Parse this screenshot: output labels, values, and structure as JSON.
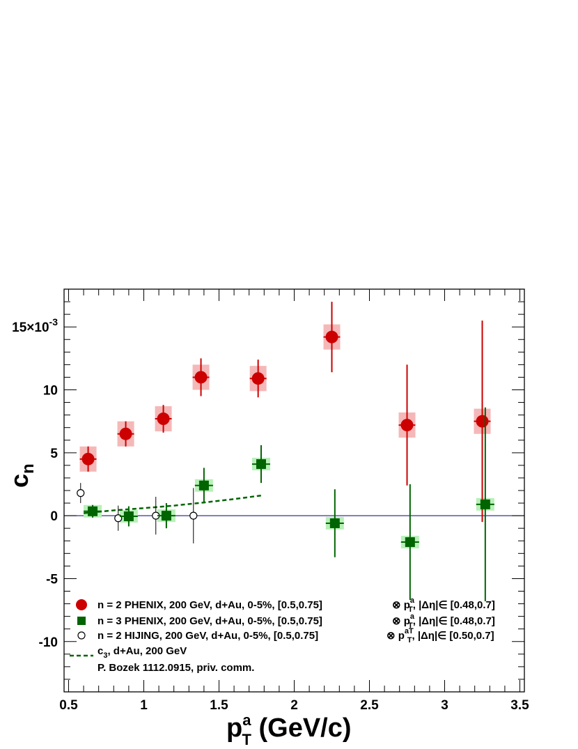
{
  "chart_data": {
    "type": "scatter",
    "xlabel": {
      "main": "p",
      "sub": "T",
      "sup": "a",
      "rest": " (GeV/c)"
    },
    "ylabel": {
      "main": "c",
      "sub": "n"
    },
    "y_exponent_label": {
      "mantissa": "15",
      "times": "×",
      "base": "10",
      "exp": "-3"
    },
    "xlim": [
      0.47,
      3.53
    ],
    "ylim": [
      -14,
      18
    ],
    "y_scale_factor": "1e-3",
    "x_ticks": [
      0.5,
      1.0,
      1.5,
      2.0,
      2.5,
      3.0,
      3.5
    ],
    "x_tick_labels": [
      "0.5",
      "1",
      "1.5",
      "2",
      "2.5",
      "3",
      "3.5"
    ],
    "y_ticks": [
      -10,
      -5,
      0,
      5,
      10,
      15
    ],
    "y_tick_labels": [
      "-10",
      "-5",
      "0",
      "5",
      "10",
      ""
    ],
    "reference_line": {
      "y": 0,
      "color": "#000080"
    },
    "series": [
      {
        "name": "n = 2 PHENIX, 200 GeV, d+Au, 0-5%, [0.5,0.75]",
        "marker": "circle",
        "color": "#cc0000",
        "sys_color": "#f5b8b8",
        "points": [
          {
            "x": 0.63,
            "y": 4.5,
            "ey": 1.0,
            "sys": 1.0
          },
          {
            "x": 0.88,
            "y": 6.5,
            "ey": 1.0,
            "sys": 1.0
          },
          {
            "x": 1.13,
            "y": 7.7,
            "ey": 1.1,
            "sys": 1.0
          },
          {
            "x": 1.38,
            "y": 11.0,
            "ey": 1.5,
            "sys": 1.0
          },
          {
            "x": 1.76,
            "y": 10.9,
            "ey": 1.5,
            "sys": 1.0
          },
          {
            "x": 2.25,
            "y": 14.2,
            "ey": 2.8,
            "sys": 1.0
          },
          {
            "x": 2.75,
            "y": 7.2,
            "ey": 4.8,
            "sys": 1.0
          },
          {
            "x": 3.25,
            "y": 7.5,
            "ey": 8.0,
            "sys": 1.0
          }
        ]
      },
      {
        "name": "n = 3 PHENIX, 200 GeV, d+Au, 0-5%, [0.5,0.75]",
        "marker": "square",
        "color": "#006400",
        "sys_color": "#b8f0b8",
        "points": [
          {
            "x": 0.66,
            "y": 0.35,
            "ey": 0.5,
            "sys": 0.5
          },
          {
            "x": 0.9,
            "y": -0.05,
            "ey": 0.8,
            "sys": 0.5
          },
          {
            "x": 1.15,
            "y": 0.0,
            "ey": 1.0,
            "sys": 0.5
          },
          {
            "x": 1.4,
            "y": 2.4,
            "ey": 1.4,
            "sys": 0.5
          },
          {
            "x": 1.78,
            "y": 4.1,
            "ey": 1.5,
            "sys": 0.5
          },
          {
            "x": 2.27,
            "y": -0.6,
            "ey": 2.7,
            "sys": 0.5
          },
          {
            "x": 2.77,
            "y": -2.1,
            "ey": 4.6,
            "sys": 0.5
          },
          {
            "x": 3.27,
            "y": 0.9,
            "ey": 7.7,
            "sys": 0.5
          }
        ]
      },
      {
        "name": "n = 2 HIJING, 200 GeV, d+Au, 0-5%, [0.5,0.75]",
        "marker": "open-circle",
        "color": "#000000",
        "points": [
          {
            "x": 0.58,
            "y": 1.8,
            "ey": 0.8
          },
          {
            "x": 0.83,
            "y": -0.2,
            "ey": 1.0
          },
          {
            "x": 1.08,
            "y": 0.0,
            "ey": 1.5
          },
          {
            "x": 1.33,
            "y": 0.0,
            "ey": 2.2
          }
        ]
      },
      {
        "name": "c₃, d+Au, 200 GeV",
        "marker": "dashed-line",
        "color": "#006400",
        "points": [
          {
            "x": 0.6,
            "y": 0.2
          },
          {
            "x": 0.8,
            "y": 0.42
          },
          {
            "x": 1.0,
            "y": 0.6
          },
          {
            "x": 1.2,
            "y": 0.8
          },
          {
            "x": 1.4,
            "y": 1.05
          },
          {
            "x": 1.6,
            "y": 1.32
          },
          {
            "x": 1.78,
            "y": 1.6
          }
        ]
      }
    ],
    "legend": {
      "placement": "bottom-left",
      "entries": [
        {
          "label": "n = 2 PHENIX, 200 GeV, d+Au, 0-5%, [0.5,0.75]",
          "suffix_a": "⊗ p",
          "suffix_sub": "T",
          "suffix_sup": "a",
          "suffix_b": ", |Δη|∈ [0.48,0.7]"
        },
        {
          "label": "n = 3 PHENIX, 200 GeV, d+Au, 0-5%, [0.5,0.75]",
          "suffix_a": "⊗ p",
          "suffix_sub": "T",
          "suffix_sup": "a",
          "suffix_b": ", |Δη|∈ [0.48,0.7]"
        },
        {
          "label": "n = 2 HIJING, 200 GeV, d+Au, 0-5%, [0.5,0.75]",
          "suffix_a": "⊗ p",
          "suffix_sub": "T",
          "suffix_sup": "aT",
          "suffix_b": ", |Δη|∈ [0.50,0.7]"
        },
        {
          "label_main": "c",
          "label_sub": "3",
          "label_rest": ", d+Au, 200 GeV"
        },
        {
          "label": "P. Bozek 1112.0915, priv. comm."
        }
      ]
    }
  }
}
